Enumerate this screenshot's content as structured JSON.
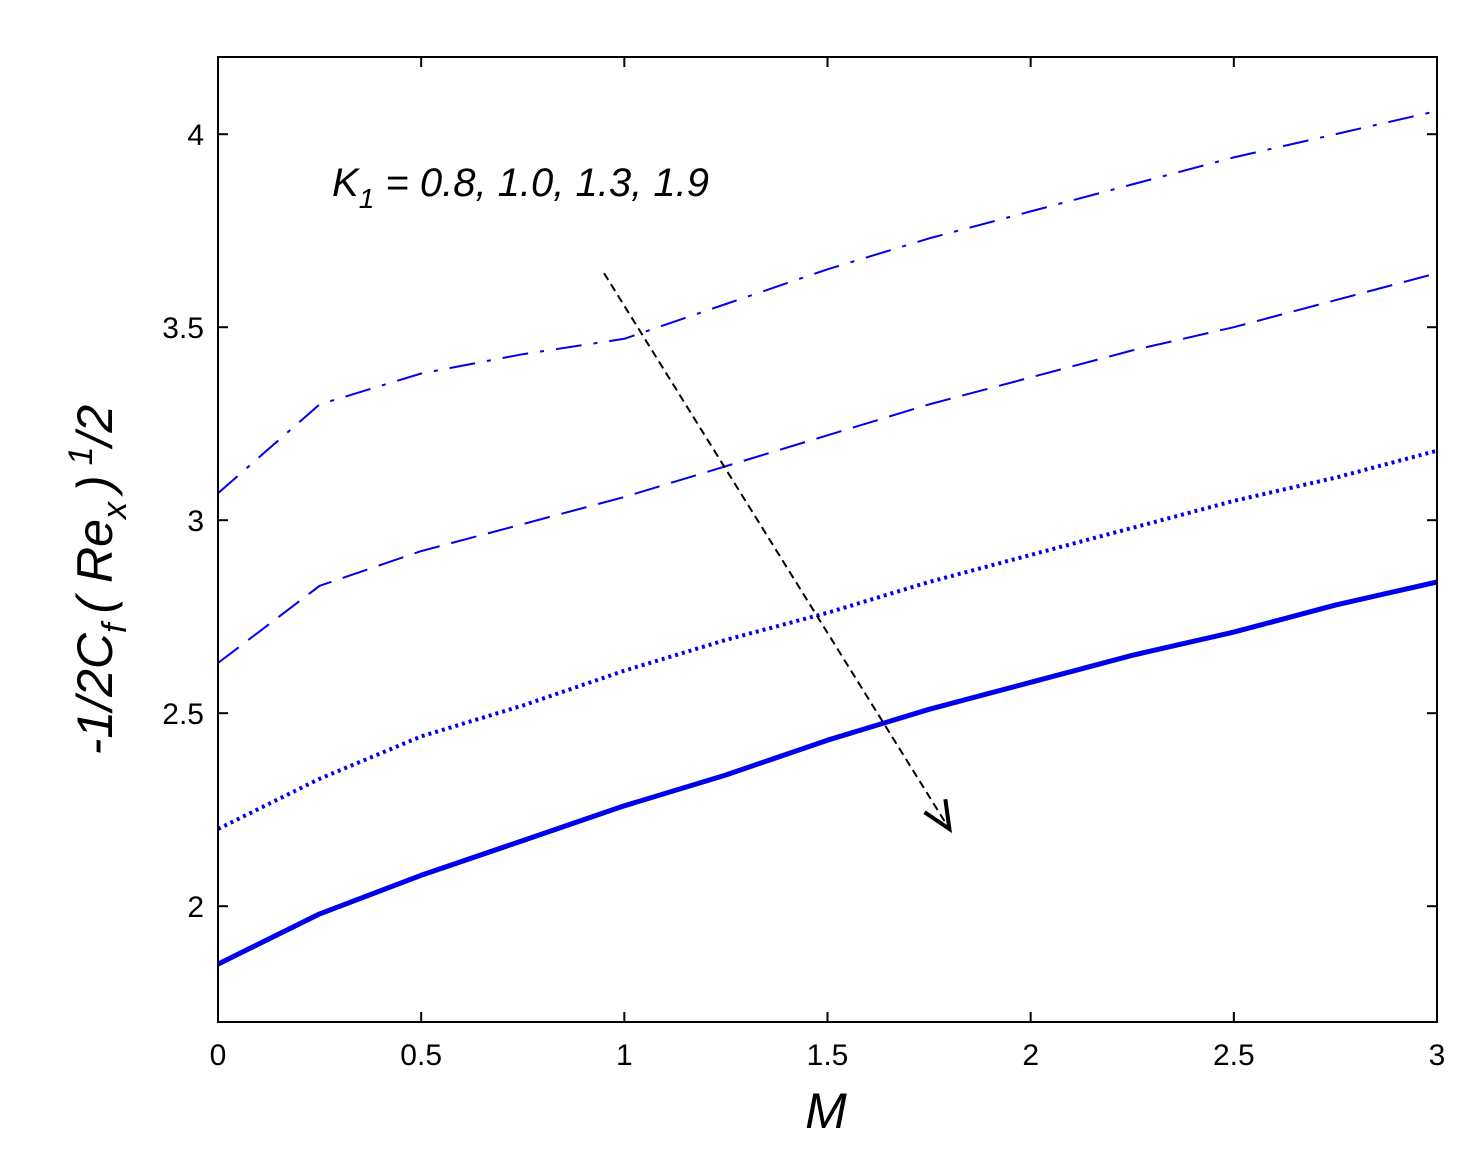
{
  "chart_data": {
    "type": "line",
    "xlabel": "M",
    "ylabel": {
      "main": "-1/2C",
      "sub_f": "f",
      "paren_open": "( Re",
      "sub_x": "x",
      "paren_close": ")",
      "sup": "1",
      "tail": "/2"
    },
    "xlim": [
      0,
      3
    ],
    "ylim": [
      1.7,
      4.2
    ],
    "xticks": [
      0,
      0.5,
      1,
      1.5,
      2,
      2.5,
      3
    ],
    "xtick_labels": [
      "0",
      "0.5",
      "1",
      "1.5",
      "2",
      "2.5",
      "3"
    ],
    "yticks": [
      2,
      2.5,
      3,
      3.5,
      4
    ],
    "ytick_labels": [
      "2",
      "2.5",
      "3",
      "3.5",
      "4"
    ],
    "grid": false,
    "annotation": {
      "symbol": "K",
      "sub": "1",
      "text": " = 0.8, 1.0, 1.3, 1.9"
    },
    "arrow": {
      "from": [
        0.95,
        3.64
      ],
      "to": [
        1.8,
        2.2
      ]
    },
    "line_color": "#0000ee",
    "x": [
      0,
      0.25,
      0.5,
      0.75,
      1,
      1.25,
      1.5,
      1.75,
      2,
      2.25,
      2.5,
      2.75,
      3
    ],
    "series": [
      {
        "style": "dashdot",
        "values": [
          3.07,
          3.3,
          3.38,
          3.43,
          3.47,
          3.56,
          3.65,
          3.73,
          3.8,
          3.87,
          3.94,
          4.0,
          4.06
        ]
      },
      {
        "style": "dashed",
        "values": [
          2.63,
          2.83,
          2.92,
          2.99,
          3.06,
          3.14,
          3.22,
          3.3,
          3.37,
          3.44,
          3.5,
          3.57,
          3.64
        ]
      },
      {
        "style": "dotted",
        "values": [
          2.2,
          2.33,
          2.44,
          2.52,
          2.61,
          2.69,
          2.76,
          2.84,
          2.91,
          2.98,
          3.05,
          3.11,
          3.18
        ]
      },
      {
        "style": "solid",
        "values": [
          1.85,
          1.98,
          2.08,
          2.17,
          2.26,
          2.34,
          2.43,
          2.51,
          2.58,
          2.65,
          2.71,
          2.78,
          2.84
        ]
      }
    ]
  }
}
